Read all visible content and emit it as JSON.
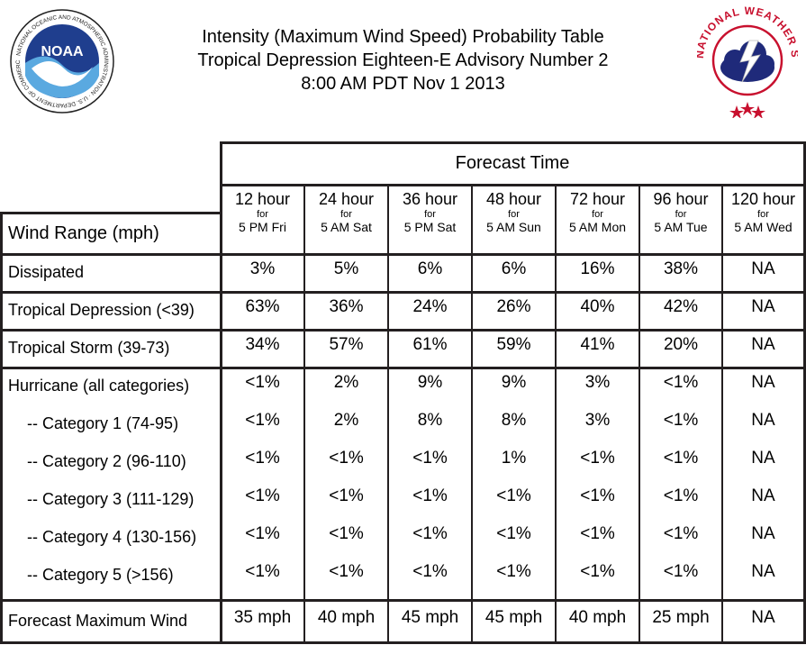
{
  "header": {
    "line1": "Intensity (Maximum Wind Speed) Probability Table",
    "line2": "Tropical Depression Eighteen-E Advisory Number 2",
    "line3": "8:00 AM PDT Nov 1 2013"
  },
  "logos": {
    "noaa": {
      "text": "NOAA",
      "ring": "NATIONAL OCEANIC AND ATMOSPHERIC ADMINISTRATION · U.S. DEPARTMENT OF COMMERCE"
    },
    "nws": {
      "ring": "NATIONAL WEATHER SERVICE"
    }
  },
  "table": {
    "forecast_time_label": "Forecast Time",
    "wind_range_label": "Wind Range (mph)",
    "columns": [
      {
        "hours": "12 hour",
        "for": "for",
        "time": "5 PM Fri"
      },
      {
        "hours": "24 hour",
        "for": "for",
        "time": "5 AM Sat"
      },
      {
        "hours": "36 hour",
        "for": "for",
        "time": "5 PM Sat"
      },
      {
        "hours": "48 hour",
        "for": "for",
        "time": "5 AM Sun"
      },
      {
        "hours": "72 hour",
        "for": "for",
        "time": "5 AM Mon"
      },
      {
        "hours": "96 hour",
        "for": "for",
        "time": "5 AM Tue"
      },
      {
        "hours": "120 hour",
        "for": "for",
        "time": "5 AM Wed"
      }
    ],
    "rows": [
      {
        "label": "Dissipated",
        "values": [
          "3%",
          "5%",
          "6%",
          "6%",
          "16%",
          "38%",
          "NA"
        ]
      },
      {
        "label": "Tropical Depression (<39)",
        "values": [
          "63%",
          "36%",
          "24%",
          "26%",
          "40%",
          "42%",
          "NA"
        ]
      },
      {
        "label": "Tropical Storm (39-73)",
        "values": [
          "34%",
          "57%",
          "61%",
          "59%",
          "41%",
          "20%",
          "NA"
        ]
      },
      {
        "label": "Hurricane (all categories)",
        "values": [
          "<1%",
          "2%",
          "9%",
          "9%",
          "3%",
          "<1%",
          "NA"
        ]
      },
      {
        "label": "-- Category 1 (74-95)",
        "values": [
          "<1%",
          "2%",
          "8%",
          "8%",
          "3%",
          "<1%",
          "NA"
        ]
      },
      {
        "label": "-- Category 2 (96-110)",
        "values": [
          "<1%",
          "<1%",
          "<1%",
          "1%",
          "<1%",
          "<1%",
          "NA"
        ]
      },
      {
        "label": "-- Category 3 (111-129)",
        "values": [
          "<1%",
          "<1%",
          "<1%",
          "<1%",
          "<1%",
          "<1%",
          "NA"
        ]
      },
      {
        "label": "-- Category 4 (130-156)",
        "values": [
          "<1%",
          "<1%",
          "<1%",
          "<1%",
          "<1%",
          "<1%",
          "NA"
        ]
      },
      {
        "label": "-- Category 5 (>156)",
        "values": [
          "<1%",
          "<1%",
          "<1%",
          "<1%",
          "<1%",
          "<1%",
          "NA"
        ]
      },
      {
        "label": "Forecast Maximum Wind",
        "values": [
          "35 mph",
          "40 mph",
          "45 mph",
          "45 mph",
          "40 mph",
          "25 mph",
          "NA"
        ]
      }
    ]
  }
}
